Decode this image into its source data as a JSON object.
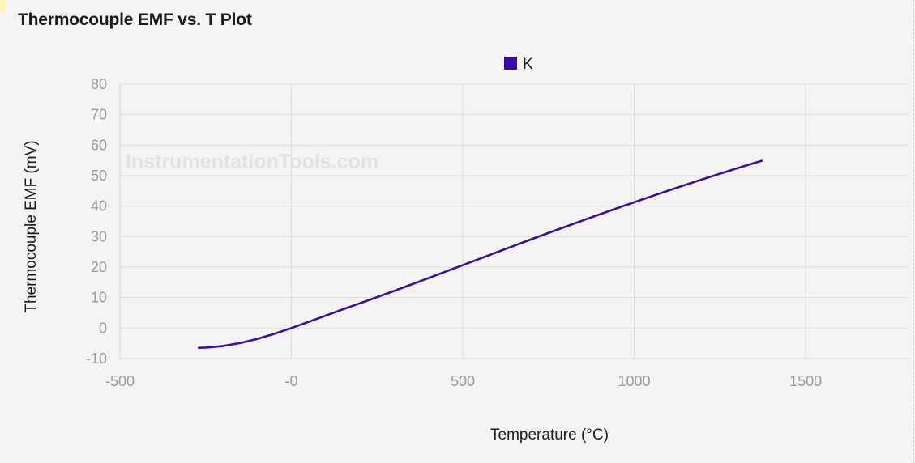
{
  "page": {
    "title": "Thermocouple EMF vs. T Plot",
    "watermark": "InstrumentationTools.com"
  },
  "chart_data": {
    "type": "line",
    "title": "Thermocouple EMF vs. T Plot",
    "xlabel": "Temperature (°C)",
    "ylabel": "Thermocouple EMF (mV)",
    "xlim": [
      -500,
      1800
    ],
    "ylim": [
      -10,
      80
    ],
    "x_ticks": [
      -500,
      0,
      500,
      1000,
      1500
    ],
    "x_tick_labels": [
      "-500",
      "-0",
      "500",
      "1000",
      "1500"
    ],
    "y_ticks": [
      -10,
      0,
      10,
      20,
      30,
      40,
      50,
      60,
      70,
      80
    ],
    "y_tick_labels": [
      "-10",
      "0",
      "10",
      "20",
      "30",
      "40",
      "50",
      "60",
      "70",
      "80"
    ],
    "grid": true,
    "legend_position": "top-center",
    "series": [
      {
        "name": "K",
        "color": "#3a0ca3",
        "x": [
          -270,
          -250,
          -200,
          -150,
          -100,
          -50,
          0,
          50,
          100,
          150,
          200,
          250,
          300,
          350,
          400,
          450,
          500,
          550,
          600,
          650,
          700,
          750,
          800,
          850,
          900,
          950,
          1000,
          1050,
          1100,
          1150,
          1200,
          1250,
          1300,
          1350,
          1372
        ],
        "y": [
          -6.458,
          -6.404,
          -5.891,
          -4.913,
          -3.554,
          -1.889,
          0.0,
          2.023,
          4.096,
          6.138,
          8.138,
          10.153,
          12.209,
          14.293,
          16.397,
          18.516,
          20.644,
          22.776,
          24.905,
          27.025,
          29.129,
          31.213,
          33.275,
          35.313,
          37.326,
          39.314,
          41.276,
          43.211,
          45.119,
          46.995,
          48.838,
          50.644,
          52.41,
          54.138,
          54.886
        ]
      }
    ]
  }
}
